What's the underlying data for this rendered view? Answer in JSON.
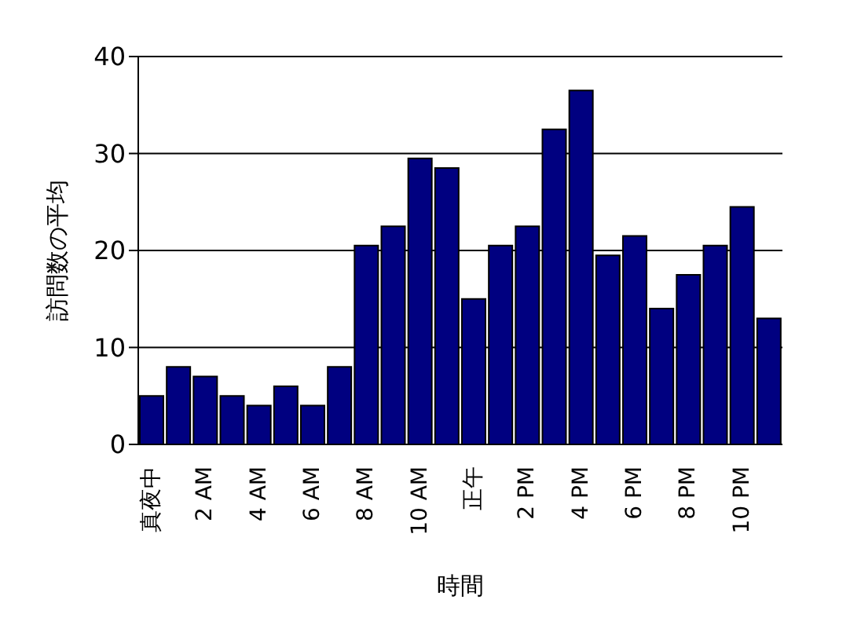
{
  "chart_data": {
    "type": "bar",
    "xlabel": "時間",
    "ylabel": "訪問数の平均",
    "categories": [
      "真夜中",
      null,
      "2 AM",
      null,
      "4 AM",
      null,
      "6 AM",
      null,
      "8 AM",
      null,
      "10 AM",
      null,
      "正午",
      null,
      "2 PM",
      null,
      "4 PM",
      null,
      "6 PM",
      null,
      "8 PM",
      null,
      "10 PM",
      null
    ],
    "values": [
      5,
      8,
      7,
      5,
      4,
      6,
      4,
      8,
      20.5,
      22.5,
      29.5,
      28.5,
      15,
      20.5,
      22.5,
      32.5,
      36.5,
      19.5,
      21.5,
      14,
      17.5,
      20.5,
      24.5,
      13
    ],
    "color": "#000080",
    "ylim": [
      0,
      40
    ],
    "yticks": [
      0,
      10,
      20,
      30,
      40
    ],
    "grid": "y",
    "legend": false
  }
}
